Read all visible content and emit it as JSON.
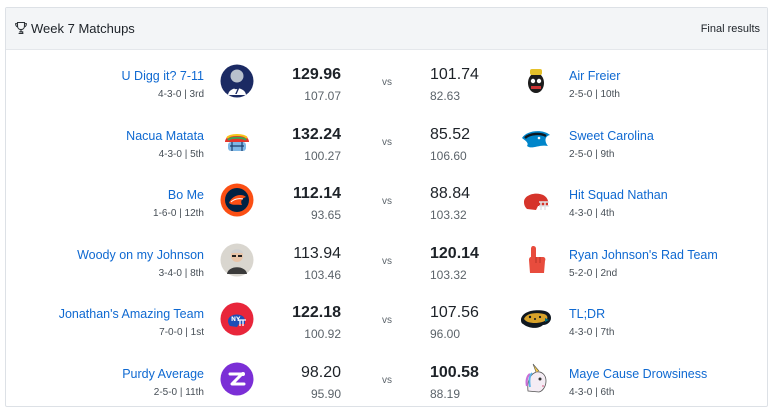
{
  "header": {
    "title": "Week 7 Matchups",
    "status": "Final results"
  },
  "vs_label": "vs",
  "matchups": [
    {
      "left": {
        "name": "U Digg it? 7-11",
        "record": "4-3-0 | 3rd",
        "score": "129.96",
        "projected": "107.07",
        "winner": true
      },
      "right": {
        "name": "Air Freier",
        "record": "2-5-0 | 10th",
        "score": "101.74",
        "projected": "82.63",
        "winner": false
      }
    },
    {
      "left": {
        "name": "Nacua Matata",
        "record": "4-3-0 | 5th",
        "score": "132.24",
        "projected": "100.27",
        "winner": true
      },
      "right": {
        "name": "Sweet Carolina",
        "record": "2-5-0 | 9th",
        "score": "85.52",
        "projected": "106.60",
        "winner": false
      }
    },
    {
      "left": {
        "name": "Bo Me",
        "record": "1-6-0 | 12th",
        "score": "112.14",
        "projected": "93.65",
        "winner": true
      },
      "right": {
        "name": "Hit Squad Nathan",
        "record": "4-3-0 | 4th",
        "score": "88.84",
        "projected": "103.32",
        "winner": false
      }
    },
    {
      "left": {
        "name": "Woody on my Johnson",
        "record": "3-4-0 | 8th",
        "score": "113.94",
        "projected": "103.46",
        "winner": false
      },
      "right": {
        "name": "Ryan Johnson's Rad Team",
        "record": "5-2-0 | 2nd",
        "score": "120.14",
        "projected": "103.32",
        "winner": true
      }
    },
    {
      "left": {
        "name": "Jonathan's Amazing Team",
        "record": "7-0-0 | 1st",
        "score": "122.18",
        "projected": "100.92",
        "winner": true
      },
      "right": {
        "name": "TL;DR",
        "record": "4-3-0 | 7th",
        "score": "107.56",
        "projected": "96.00",
        "winner": false
      }
    },
    {
      "left": {
        "name": "Purdy Average",
        "record": "2-5-0 | 11th",
        "score": "98.20",
        "projected": "95.90",
        "winner": false
      },
      "right": {
        "name": "Maye Cause Drowsiness",
        "record": "4-3-0 | 6th",
        "score": "100.58",
        "projected": "88.19",
        "winner": true
      }
    }
  ],
  "icons": {
    "trophy": "trophy-icon",
    "avatars": [
      "cowboys-player-avatar",
      "air-fryer-mascot-avatar",
      "rainbow-helmet-avatar",
      "panthers-logo-avatar",
      "broncos-logo-avatar",
      "red-helmet-avatar",
      "person-photo-avatar",
      "foam-finger-avatar",
      "giants-helmet-avatar",
      "jaguars-logo-avatar",
      "purple-logo-avatar",
      "unicorn-avatar"
    ]
  },
  "colors": {
    "link": "#0f69d1",
    "text": "#1d2228",
    "muted": "#5b636a",
    "header_bg": "#f3f5f7",
    "border": "#dde1e6"
  }
}
